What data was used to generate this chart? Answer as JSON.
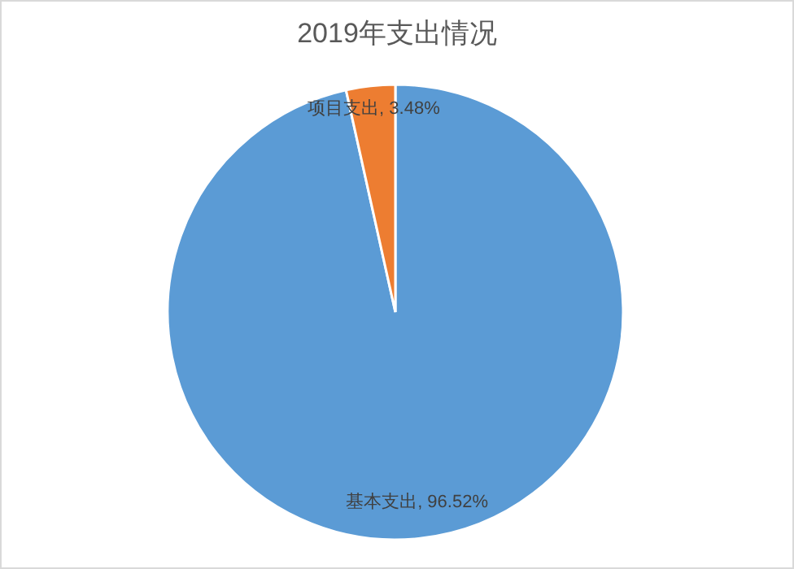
{
  "chart_data": {
    "type": "pie",
    "title": "2019年支出情况",
    "categories": [
      "基本支出",
      "项目支出"
    ],
    "values": [
      96.52,
      3.48
    ],
    "colors": [
      "#5b9bd5",
      "#ed7d31"
    ],
    "value_labels": [
      "96.52%",
      "3.48%"
    ]
  }
}
